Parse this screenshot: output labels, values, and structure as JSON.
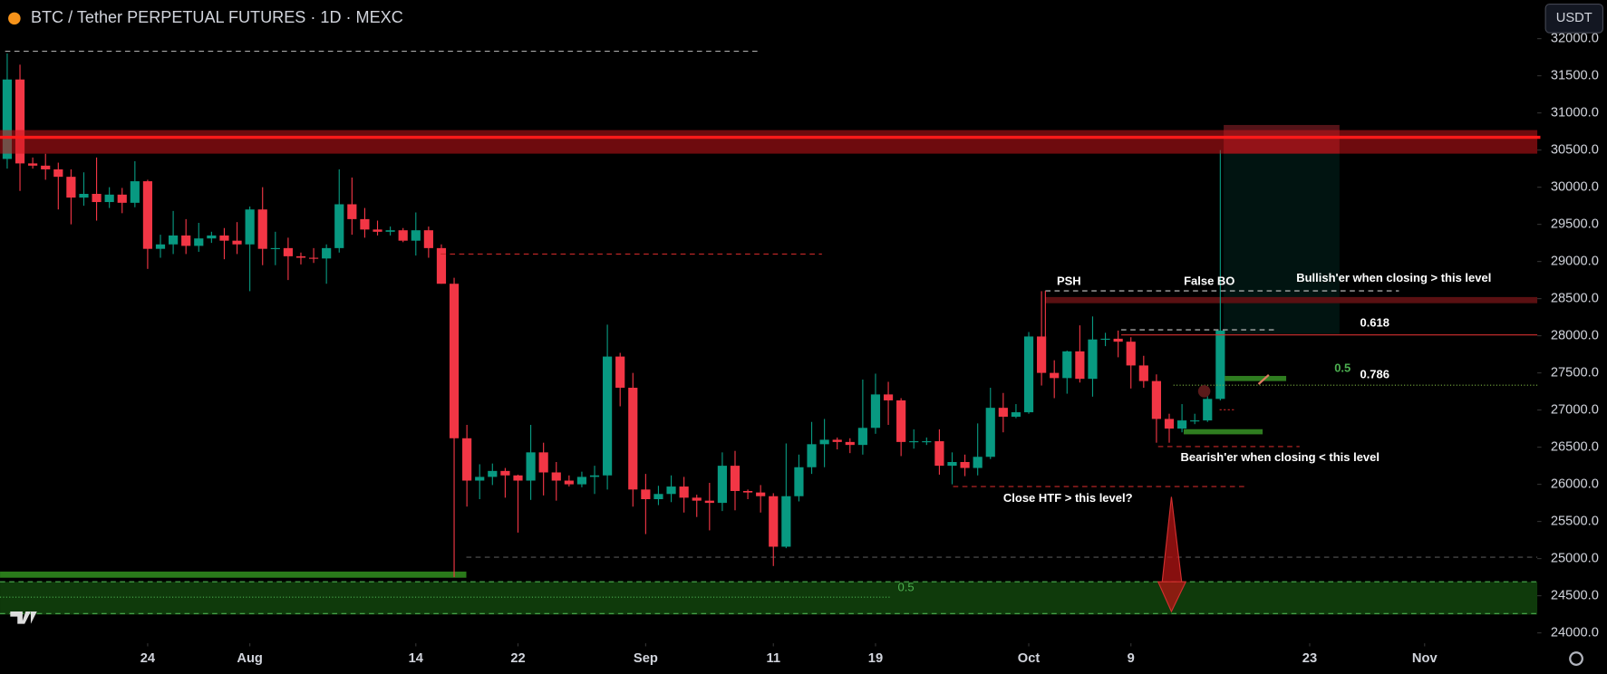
{
  "chart_data": {
    "type": "candlestick",
    "title": "BTC / Tether PERPETUAL FUTURES · 1D · MEXC",
    "x": [
      "Jul 13",
      "Jul 14",
      "Jul 15",
      "Jul 16",
      "Jul 17",
      "Jul 18",
      "Jul 19",
      "Jul 20",
      "Jul 21",
      "Jul 22",
      "Jul 23",
      "Jul 24",
      "Jul 25",
      "Jul 26",
      "Jul 27",
      "Jul 28",
      "Jul 29",
      "Jul 30",
      "Jul 31",
      "Aug 1",
      "Aug 2",
      "Aug 3",
      "Aug 4",
      "Aug 5",
      "Aug 6",
      "Aug 7",
      "Aug 8",
      "Aug 9",
      "Aug 10",
      "Aug 11",
      "Aug 12",
      "Aug 13",
      "Aug 14",
      "Aug 15",
      "Aug 16",
      "Aug 17",
      "Aug 18",
      "Aug 19",
      "Aug 20",
      "Aug 21",
      "Aug 22",
      "Aug 23",
      "Aug 24",
      "Aug 25",
      "Aug 26",
      "Aug 27",
      "Aug 28",
      "Aug 29",
      "Aug 30",
      "Aug 31",
      "Sep 1",
      "Sep 2",
      "Sep 3",
      "Sep 4",
      "Sep 5",
      "Sep 6",
      "Sep 7",
      "Sep 8",
      "Sep 9",
      "Sep 10",
      "Sep 11",
      "Sep 12",
      "Sep 13",
      "Sep 14",
      "Sep 15",
      "Sep 16",
      "Sep 17",
      "Sep 18",
      "Sep 19",
      "Sep 20",
      "Sep 21",
      "Sep 22",
      "Sep 23",
      "Sep 24",
      "Sep 25",
      "Sep 26",
      "Sep 27",
      "Sep 28",
      "Sep 29",
      "Sep 30",
      "Oct 1",
      "Oct 2",
      "Oct 3",
      "Oct 4",
      "Oct 5",
      "Oct 6",
      "Oct 7",
      "Oct 8",
      "Oct 9",
      "Oct 10",
      "Oct 11",
      "Oct 12",
      "Oct 13",
      "Oct 14",
      "Oct 15",
      "Oct 16",
      "Oct 17",
      "Oct 18",
      "Oct 19",
      "Oct 20",
      "Oct 21",
      "Oct 22",
      "Oct 23",
      "Oct 24",
      "Oct 25",
      "Oct 26",
      "Oct 27",
      "Oct 28",
      "Oct 29",
      "Oct 30",
      "Oct 31",
      "Nov 1"
    ],
    "open": [
      30380,
      31450,
      30320,
      30290,
      30240,
      30140,
      29860,
      29910,
      29800,
      29900,
      29790,
      30080,
      29170,
      29230,
      29350,
      29210,
      29310,
      29350,
      29280,
      29230,
      29700,
      29170,
      29180,
      29070,
      29050,
      29040,
      29180,
      29770,
      29570,
      29430,
      29400,
      29420,
      29280,
      29420,
      29180,
      28700,
      26620,
      26050,
      26100,
      26180,
      26120,
      26050,
      26430,
      26160,
      26050,
      26000,
      26100,
      26120,
      27720,
      27300,
      25930,
      25800,
      25870,
      25970,
      25820,
      25780,
      25750,
      26250,
      25910,
      25890,
      25840,
      25160,
      25840,
      26230,
      26540,
      26600,
      26570,
      26530,
      26760,
      27210,
      27130,
      26570,
      26580,
      26580,
      26250,
      26300,
      26220,
      26370,
      27030,
      26910,
      26970,
      27990,
      27500,
      27430,
      27790,
      27420,
      27950,
      27960,
      27920,
      27600,
      27390,
      26880,
      26750,
      26860,
      26860,
      27150,
      null,
      null,
      null,
      null,
      null,
      null,
      null,
      null,
      null,
      null,
      null,
      null,
      null,
      null,
      null,
      null
    ],
    "high": [
      31800,
      31650,
      30400,
      30450,
      30330,
      30240,
      30200,
      30400,
      30000,
      29990,
      30350,
      30100,
      29360,
      29680,
      29570,
      29520,
      29400,
      29450,
      29530,
      29740,
      30000,
      29400,
      29320,
      29120,
      29180,
      29230,
      30240,
      30130,
      29720,
      29550,
      29470,
      29450,
      29660,
      29470,
      29230,
      28780,
      26800,
      26270,
      26280,
      26220,
      26130,
      26800,
      26560,
      26300,
      26120,
      26170,
      26250,
      28150,
      27770,
      27500,
      26140,
      25980,
      26120,
      26100,
      25860,
      26020,
      26430,
      26450,
      25930,
      25990,
      25880,
      26550,
      26400,
      26840,
      26880,
      26630,
      26620,
      27410,
      27490,
      27380,
      27160,
      26740,
      26630,
      26740,
      26430,
      26400,
      26820,
      27300,
      27230,
      27080,
      28050,
      28600,
      27670,
      27800,
      28140,
      28260,
      28040,
      28070,
      27980,
      27730,
      27480,
      26950,
      27080,
      26950,
      27270,
      30500,
      null,
      null,
      null,
      null,
      null,
      null,
      null,
      null,
      null,
      null,
      null,
      null,
      null,
      null,
      null,
      null
    ],
    "low": [
      30250,
      29950,
      30250,
      30100,
      29700,
      29500,
      29750,
      29550,
      29720,
      29650,
      29730,
      28900,
      29050,
      29100,
      29100,
      29130,
      29250,
      29030,
      29100,
      28600,
      28950,
      28950,
      28750,
      28960,
      28980,
      28700,
      29120,
      29360,
      29320,
      29350,
      29350,
      29260,
      29080,
      29050,
      28700,
      24750,
      25700,
      25800,
      25990,
      25820,
      25350,
      25790,
      25850,
      25780,
      25970,
      25960,
      25870,
      25930,
      27050,
      25700,
      25330,
      25720,
      25760,
      25620,
      25560,
      25380,
      25640,
      25650,
      25800,
      25620,
      24900,
      25140,
      25770,
      26140,
      26230,
      26470,
      26420,
      26400,
      26680,
      26800,
      26380,
      26480,
      26530,
      26130,
      26000,
      26110,
      26120,
      26340,
      26700,
      26890,
      26950,
      27330,
      27160,
      27220,
      27370,
      27180,
      27860,
      27710,
      27290,
      27300,
      26560,
      26560,
      26700,
      26810,
      26840,
      27130,
      null,
      null,
      null,
      null,
      null,
      null,
      null,
      null,
      null,
      null,
      null,
      null,
      null,
      null,
      null,
      null
    ],
    "close": [
      31450,
      30320,
      30290,
      30240,
      30140,
      29860,
      29910,
      29800,
      29900,
      29790,
      30080,
      29170,
      29230,
      29350,
      29210,
      29310,
      29350,
      29280,
      29230,
      29700,
      29170,
      29180,
      29070,
      29050,
      29040,
      29180,
      29770,
      29570,
      29430,
      29400,
      29420,
      29280,
      29420,
      29180,
      28700,
      26620,
      26050,
      26100,
      26180,
      26120,
      26050,
      26430,
      26160,
      26050,
      26000,
      26100,
      26120,
      27720,
      27300,
      25930,
      25800,
      25870,
      25970,
      25820,
      25780,
      25750,
      26250,
      25910,
      25890,
      25840,
      25160,
      25840,
      26230,
      26540,
      26600,
      26570,
      26530,
      26760,
      27210,
      27130,
      26570,
      26580,
      26580,
      26250,
      26300,
      26220,
      26370,
      27030,
      26910,
      26970,
      27990,
      27500,
      27430,
      27790,
      27420,
      27950,
      27960,
      27920,
      27600,
      27390,
      26880,
      26750,
      26860,
      26860,
      27150,
      28070,
      null,
      null,
      null,
      null,
      null,
      null,
      null,
      null,
      null,
      null,
      null,
      null,
      null,
      null,
      null,
      null
    ],
    "up_color": "#089981",
    "down_color": "#f23645",
    "ylim": [
      23860,
      32520
    ],
    "yticks": [
      {
        "value": 24000,
        "label": "24000.0"
      },
      {
        "value": 24500,
        "label": "24500.0"
      },
      {
        "value": 25000,
        "label": "25000.0"
      },
      {
        "value": 25500,
        "label": "25500.0"
      },
      {
        "value": 26000,
        "label": "26000.0"
      },
      {
        "value": 26500,
        "label": "26500.0"
      },
      {
        "value": 27000,
        "label": "27000.0"
      },
      {
        "value": 27500,
        "label": "27500.0"
      },
      {
        "value": 28000,
        "label": "28000.0"
      },
      {
        "value": 28500,
        "label": "28500.0"
      },
      {
        "value": 29000,
        "label": "29000.0"
      },
      {
        "value": 29500,
        "label": "29500.0"
      },
      {
        "value": 30000,
        "label": "30000.0"
      },
      {
        "value": 30500,
        "label": "30500.0"
      },
      {
        "value": 31000,
        "label": "31000.0"
      },
      {
        "value": 31500,
        "label": "31500.0"
      },
      {
        "value": 32000,
        "label": "32000.0"
      }
    ],
    "xticks": [
      {
        "value": "Jul 24",
        "label": "24"
      },
      {
        "value": "Aug 1",
        "label": "Aug"
      },
      {
        "value": "Aug 14",
        "label": "14"
      },
      {
        "value": "Aug 22",
        "label": "22"
      },
      {
        "value": "Sep 1",
        "label": "Sep"
      },
      {
        "value": "Sep 11",
        "label": "11"
      },
      {
        "value": "Sep 19",
        "label": "19"
      },
      {
        "value": "Oct 1",
        "label": "Oct"
      },
      {
        "value": "Oct 9",
        "label": "9"
      },
      {
        "value": "Oct 23",
        "label": "23"
      },
      {
        "value": "Nov 1",
        "label": "Nov"
      }
    ],
    "annotations": [
      "PSH",
      "False BO",
      "Bullish'er when closing > this level",
      "0.618",
      "0.5",
      "0.786",
      "Bearish'er when closing < this level",
      "Close HTF > this level?",
      "0.5"
    ]
  },
  "toolbar": {
    "currency": "USDT"
  }
}
